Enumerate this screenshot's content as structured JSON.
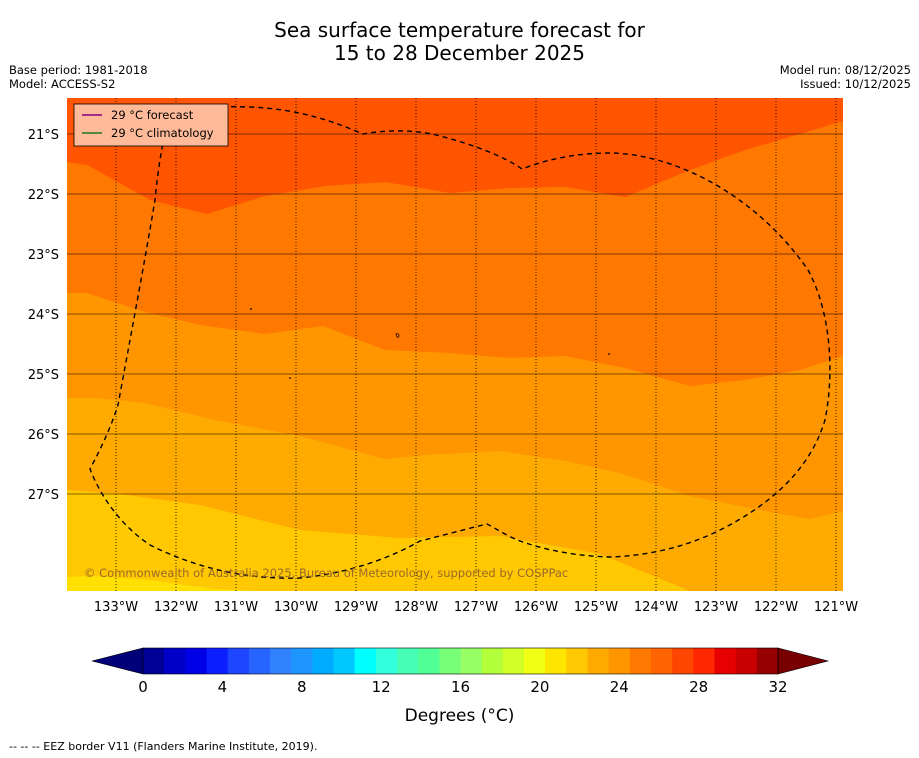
{
  "title_line1": "Sea surface temperature forecast for",
  "title_line2": "15 to 28 December 2025",
  "meta": {
    "base_period": "Base period: 1981-2018",
    "model": "Model: ACCESS-S2",
    "model_run": "Model run: 08/12/2025",
    "issued": "Issued: 10/12/2025"
  },
  "legend": {
    "forecast": "29 °C  forecast",
    "climatology": "29 °C  climatology",
    "forecast_color": "#800080",
    "climatology_color": "#1a7a1a"
  },
  "copyright": "© Commonwealth of Australia 2025, Bureau of Meteorology, supported by COSPPac",
  "lat_labels": [
    "21°S",
    "22°S",
    "23°S",
    "24°S",
    "25°S",
    "26°S",
    "27°S"
  ],
  "lon_labels": [
    "133°W",
    "132°W",
    "131°W",
    "130°W",
    "129°W",
    "128°W",
    "127°W",
    "126°W",
    "125°W",
    "124°W",
    "123°W",
    "122°W",
    "121°W"
  ],
  "colorbar": {
    "ticks": [
      "0",
      "4",
      "8",
      "12",
      "16",
      "20",
      "24",
      "28",
      "32"
    ],
    "label": "Degrees (°C)",
    "colors": [
      "#000096",
      "#0000c8",
      "#0000e6",
      "#0a1eff",
      "#1e46ff",
      "#2864ff",
      "#3282ff",
      "#1e96ff",
      "#00aaff",
      "#00c8ff",
      "#00ffff",
      "#32ffdc",
      "#46ffb4",
      "#50ff96",
      "#78ff78",
      "#96ff64",
      "#b4ff3c",
      "#d2ff28",
      "#f0ff14",
      "#ffe600",
      "#ffc800",
      "#ffaa00",
      "#ff9600",
      "#ff7800",
      "#ff6400",
      "#ff4600",
      "#ff2800",
      "#e60000",
      "#c80000",
      "#960000"
    ],
    "under_color": "#000078",
    "over_color": "#780000"
  },
  "field_colors": {
    "band_29": "#ff5500",
    "band_28": "#ff7800",
    "band_27": "#ff9600",
    "band_26": "#ffaa00",
    "band_25": "#ffc800",
    "band_24": "#ffe000"
  },
  "footnote": "--  --  -- EEZ border V11 (Flanders Marine Institute, 2019)."
}
